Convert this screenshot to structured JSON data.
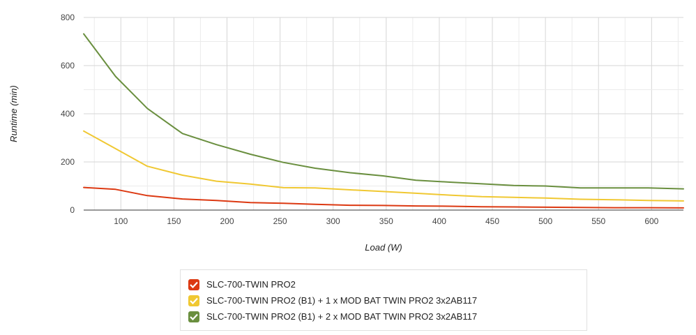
{
  "chart_data": {
    "type": "line",
    "xlabel": "Load (W)",
    "ylabel": "Runtime (min)",
    "xlim": [
      65,
      630
    ],
    "ylim": [
      0,
      800
    ],
    "x_ticks": [
      100,
      150,
      200,
      250,
      300,
      350,
      400,
      450,
      500,
      550,
      600
    ],
    "y_ticks": [
      0,
      200,
      400,
      600,
      800
    ],
    "grid": true,
    "legend_position": "bottom",
    "series": [
      {
        "name": "SLC-700-TWIN PRO2",
        "color": "#dc3912",
        "x": [
          65,
          95,
          125,
          158,
          190,
          222,
          253,
          283,
          316,
          347,
          378,
          410,
          440,
          470,
          500,
          533,
          565,
          597,
          630
        ],
        "y": [
          94,
          86,
          60,
          46,
          40,
          31,
          28,
          24,
          20,
          19,
          17,
          16,
          14,
          13,
          12,
          11,
          10,
          10,
          9
        ]
      },
      {
        "name": "SLC-700-TWIN PRO2 (B1) + 1 x MOD BAT TWIN PRO2 3x2AB117",
        "color": "#f0c832",
        "x": [
          65,
          95,
          125,
          158,
          190,
          222,
          253,
          283,
          316,
          347,
          378,
          410,
          440,
          470,
          500,
          533,
          565,
          597,
          630
        ],
        "y": [
          328,
          255,
          182,
          145,
          120,
          108,
          93,
          92,
          84,
          77,
          70,
          62,
          56,
          53,
          50,
          45,
          43,
          40,
          38
        ]
      },
      {
        "name": "SLC-700-TWIN PRO2 (B1) + 2 x MOD BAT TWIN PRO2 3x2AB117",
        "color": "#6a8f3f",
        "x": [
          65,
          95,
          125,
          158,
          190,
          222,
          253,
          283,
          316,
          347,
          378,
          410,
          440,
          470,
          500,
          533,
          565,
          597,
          630
        ],
        "y": [
          732,
          555,
          422,
          318,
          272,
          232,
          198,
          174,
          155,
          142,
          124,
          116,
          109,
          102,
          100,
          92,
          92,
          92,
          88
        ]
      }
    ]
  },
  "legend": {
    "items": [
      {
        "label": "SLC-700-TWIN PRO2",
        "color": "#dc3912"
      },
      {
        "label": "SLC-700-TWIN PRO2 (B1) + 1 x MOD BAT TWIN PRO2 3x2AB117",
        "color": "#f0c832"
      },
      {
        "label": "SLC-700-TWIN PRO2 (B1) + 2 x MOD BAT TWIN PRO2 3x2AB117",
        "color": "#6a8f3f"
      }
    ]
  }
}
